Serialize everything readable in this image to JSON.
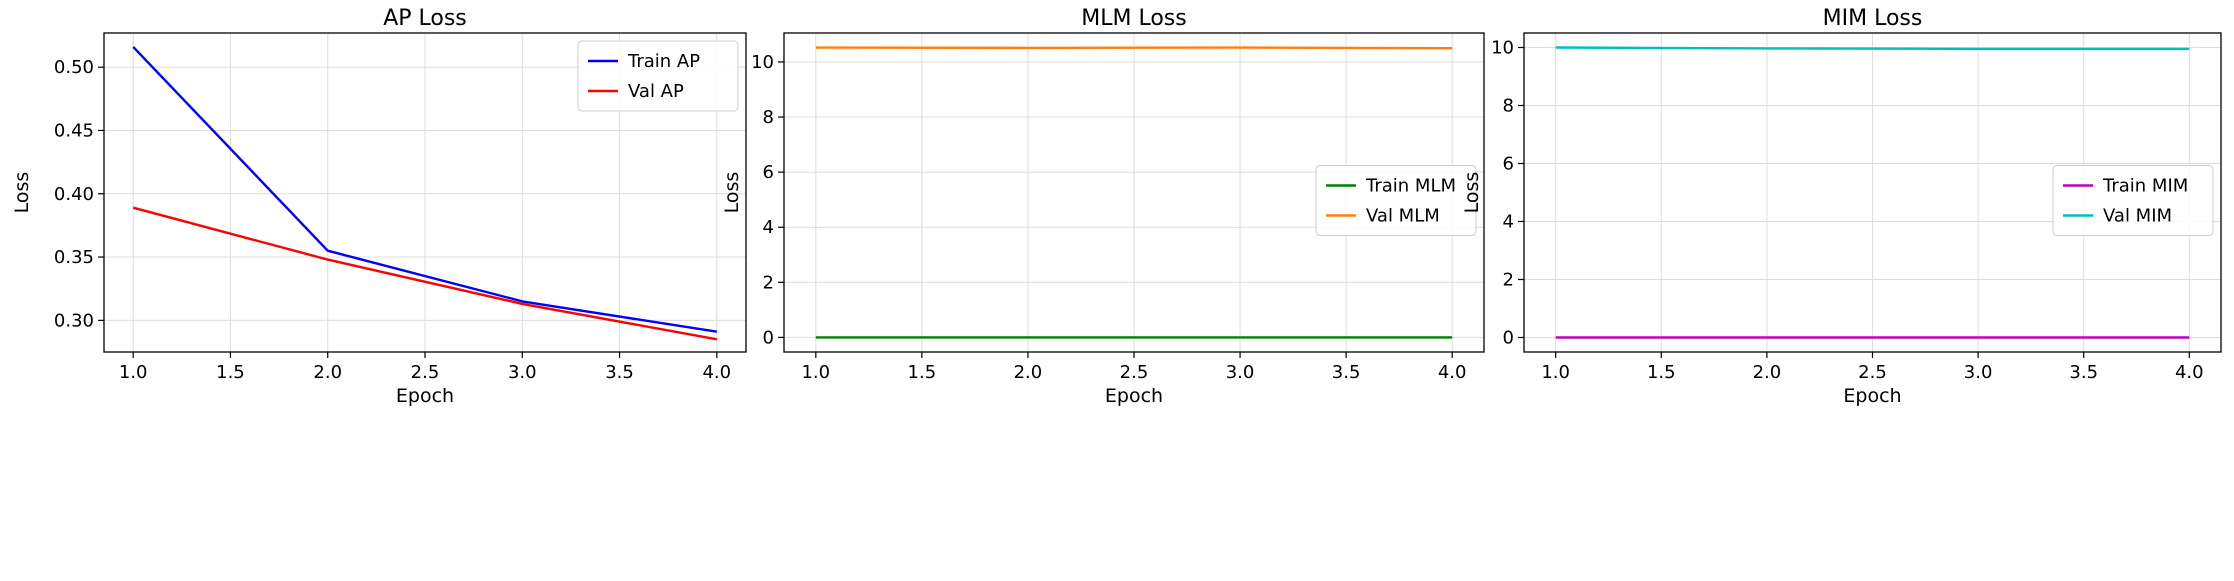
{
  "chart_data": [
    {
      "type": "line",
      "title": "AP Loss",
      "xlabel": "Epoch",
      "ylabel": "Loss",
      "x": [
        1,
        2,
        3,
        4
      ],
      "xlim": [
        0.85,
        4.15
      ],
      "ylim": [
        0.275,
        0.527
      ],
      "xticks": [
        1.0,
        1.5,
        2.0,
        2.5,
        3.0,
        3.5,
        4.0
      ],
      "xtick_labels": [
        "1.0",
        "1.5",
        "2.0",
        "2.5",
        "3.0",
        "3.5",
        "4.0"
      ],
      "yticks": [
        0.3,
        0.35,
        0.4,
        0.45,
        0.5
      ],
      "ytick_labels": [
        "0.30",
        "0.35",
        "0.40",
        "0.45",
        "0.50"
      ],
      "grid": true,
      "legend_position": "upper-right",
      "series": [
        {
          "name": "Train AP",
          "color": "#0000ff",
          "values": [
            0.516,
            0.355,
            0.315,
            0.291
          ]
        },
        {
          "name": "Val AP",
          "color": "#ff0000",
          "values": [
            0.389,
            0.348,
            0.313,
            0.285
          ]
        }
      ]
    },
    {
      "type": "line",
      "title": "MLM Loss",
      "xlabel": "Epoch",
      "ylabel": "Loss",
      "x": [
        1,
        2,
        3,
        4
      ],
      "xlim": [
        0.85,
        4.15
      ],
      "ylim": [
        -0.53,
        11.05
      ],
      "xticks": [
        1.0,
        1.5,
        2.0,
        2.5,
        3.0,
        3.5,
        4.0
      ],
      "xtick_labels": [
        "1.0",
        "1.5",
        "2.0",
        "2.5",
        "3.0",
        "3.5",
        "4.0"
      ],
      "yticks": [
        0,
        2,
        4,
        6,
        8,
        10
      ],
      "ytick_labels": [
        "0",
        "2",
        "4",
        "6",
        "8",
        "10"
      ],
      "grid": true,
      "legend_position": "center-right",
      "series": [
        {
          "name": "Train MLM",
          "color": "#008000",
          "values": [
            0.0,
            0.0,
            0.0,
            0.0
          ]
        },
        {
          "name": "Val MLM",
          "color": "#ff7f0e",
          "values": [
            10.52,
            10.51,
            10.52,
            10.5
          ]
        }
      ]
    },
    {
      "type": "line",
      "title": "MIM Loss",
      "xlabel": "Epoch",
      "ylabel": "Loss",
      "x": [
        1,
        2,
        3,
        4
      ],
      "xlim": [
        0.85,
        4.15
      ],
      "ylim": [
        -0.5,
        10.5
      ],
      "xticks": [
        1.0,
        1.5,
        2.0,
        2.5,
        3.0,
        3.5,
        4.0
      ],
      "xtick_labels": [
        "1.0",
        "1.5",
        "2.0",
        "2.5",
        "3.0",
        "3.5",
        "4.0"
      ],
      "yticks": [
        0,
        2,
        4,
        6,
        8,
        10
      ],
      "ytick_labels": [
        "0",
        "2",
        "4",
        "6",
        "8",
        "10"
      ],
      "grid": true,
      "legend_position": "center-right",
      "series": [
        {
          "name": "Train MIM",
          "color": "#bf00bf",
          "values": [
            0.0,
            0.0,
            0.0,
            0.0
          ]
        },
        {
          "name": "Val MIM",
          "color": "#00bfbf",
          "values": [
            10.0,
            9.97,
            9.95,
            9.95
          ]
        }
      ]
    }
  ]
}
